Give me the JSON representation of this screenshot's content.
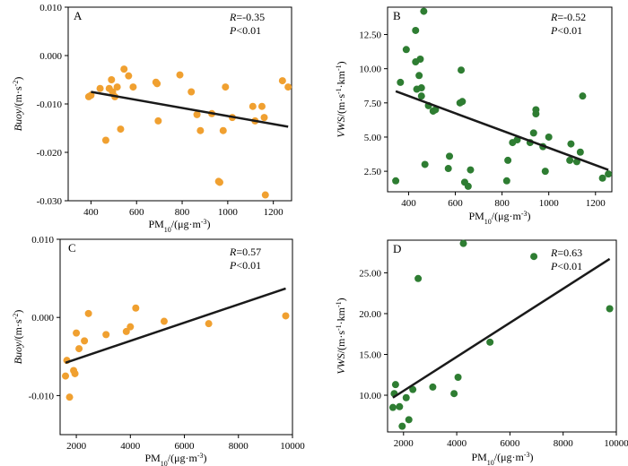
{
  "chart_data": [
    {
      "panel": "A",
      "type": "scatter",
      "stat_r_label": "R",
      "stat_r_value": "=-0.35",
      "stat_p_label": "P",
      "stat_p_value": "<0.01",
      "xlim": [
        300,
        1280
      ],
      "ylim": [
        -0.03,
        0.01
      ],
      "xticks": [
        400,
        600,
        800,
        1000,
        1200
      ],
      "yticks": [
        0.01,
        0.0,
        -0.01,
        -0.02,
        -0.03
      ],
      "xtick_labels": [
        "400",
        "600",
        "800",
        "1000",
        "1200"
      ],
      "ytick_labels": [
        "0.010",
        "0.000",
        "-0.010",
        "-0.020",
        "-0.030"
      ],
      "color": "#f0a030",
      "points": [
        [
          390,
          -0.0085
        ],
        [
          400,
          -0.0082
        ],
        [
          440,
          -0.0068
        ],
        [
          465,
          -0.0175
        ],
        [
          480,
          -0.0068
        ],
        [
          490,
          -0.005
        ],
        [
          495,
          -0.0075
        ],
        [
          505,
          -0.0085
        ],
        [
          515,
          -0.0065
        ],
        [
          530,
          -0.0152
        ],
        [
          545,
          -0.0028
        ],
        [
          565,
          -0.0042
        ],
        [
          585,
          -0.0065
        ],
        [
          685,
          -0.0055
        ],
        [
          690,
          -0.0058
        ],
        [
          695,
          -0.0135
        ],
        [
          790,
          -0.004
        ],
        [
          840,
          -0.0075
        ],
        [
          865,
          -0.0122
        ],
        [
          880,
          -0.0155
        ],
        [
          930,
          -0.012
        ],
        [
          960,
          -0.026
        ],
        [
          965,
          -0.0262
        ],
        [
          980,
          -0.0155
        ],
        [
          990,
          -0.0065
        ],
        [
          1020,
          -0.0128
        ],
        [
          1110,
          -0.0105
        ],
        [
          1120,
          -0.0135
        ],
        [
          1150,
          -0.0105
        ],
        [
          1160,
          -0.0128
        ],
        [
          1165,
          -0.0288
        ],
        [
          1240,
          -0.0052
        ],
        [
          1265,
          -0.0065
        ]
      ],
      "fit": [
        [
          400,
          -0.0075
        ],
        [
          1265,
          -0.0147
        ]
      ]
    },
    {
      "panel": "B",
      "type": "scatter",
      "stat_r_label": "R",
      "stat_r_value": "=-0.52",
      "stat_p_label": "P",
      "stat_p_value": "<0.01",
      "xlim": [
        310,
        1270
      ],
      "ylim": [
        1,
        14.5
      ],
      "xticks": [
        400,
        600,
        800,
        1000,
        1200
      ],
      "yticks": [
        2.5,
        5.0,
        7.5,
        10.0,
        12.5
      ],
      "xtick_labels": [
        "400",
        "600",
        "800",
        "1000",
        "1200"
      ],
      "ytick_labels": [
        "2.50",
        "5.00",
        "7.50",
        "10.00",
        "12.50"
      ],
      "color": "#2e7d32",
      "points": [
        [
          345,
          1.8
        ],
        [
          365,
          9.0
        ],
        [
          390,
          11.4
        ],
        [
          430,
          12.8
        ],
        [
          430,
          10.5
        ],
        [
          435,
          8.5
        ],
        [
          445,
          9.5
        ],
        [
          450,
          10.7
        ],
        [
          455,
          8.6
        ],
        [
          455,
          8.0
        ],
        [
          465,
          14.2
        ],
        [
          470,
          3.0
        ],
        [
          485,
          7.3
        ],
        [
          505,
          6.9
        ],
        [
          515,
          7.0
        ],
        [
          570,
          2.7
        ],
        [
          575,
          3.6
        ],
        [
          620,
          7.5
        ],
        [
          625,
          9.9
        ],
        [
          630,
          7.6
        ],
        [
          640,
          1.7
        ],
        [
          655,
          1.4
        ],
        [
          665,
          2.6
        ],
        [
          820,
          1.8
        ],
        [
          825,
          3.3
        ],
        [
          845,
          4.6
        ],
        [
          865,
          4.8
        ],
        [
          920,
          4.6
        ],
        [
          935,
          5.3
        ],
        [
          945,
          7.0
        ],
        [
          945,
          6.7
        ],
        [
          975,
          4.3
        ],
        [
          985,
          2.5
        ],
        [
          1000,
          5.0
        ],
        [
          1090,
          3.3
        ],
        [
          1095,
          4.5
        ],
        [
          1120,
          3.2
        ],
        [
          1135,
          3.9
        ],
        [
          1145,
          8.0
        ],
        [
          1230,
          2.0
        ],
        [
          1255,
          2.3
        ]
      ],
      "fit": [
        [
          345,
          8.35
        ],
        [
          1255,
          2.6
        ]
      ]
    },
    {
      "panel": "C",
      "type": "scatter",
      "stat_r_label": "R",
      "stat_r_value": "=0.57",
      "stat_p_label": "P",
      "stat_p_value": "<0.01",
      "xlim": [
        1400,
        10000
      ],
      "ylim": [
        -0.015,
        0.01
      ],
      "xticks": [
        2000,
        4000,
        6000,
        8000,
        10000
      ],
      "yticks": [
        0.01,
        0.0,
        -0.01
      ],
      "xtick_labels": [
        "2000",
        "4000",
        "6000",
        "8000",
        "10000"
      ],
      "ytick_labels": [
        "0.010",
        "0.000",
        "-0.010"
      ],
      "color": "#f0a030",
      "points": [
        [
          1600,
          -0.0075
        ],
        [
          1650,
          -0.0055
        ],
        [
          1750,
          -0.0102
        ],
        [
          1900,
          -0.0068
        ],
        [
          1950,
          -0.0072
        ],
        [
          2000,
          -0.002
        ],
        [
          2100,
          -0.004
        ],
        [
          2300,
          -0.003
        ],
        [
          2450,
          0.0005
        ],
        [
          3100,
          -0.0022
        ],
        [
          3850,
          -0.0018
        ],
        [
          4000,
          -0.0012
        ],
        [
          4200,
          0.0012
        ],
        [
          5250,
          -0.0005
        ],
        [
          6900,
          -0.0008
        ],
        [
          9750,
          0.0002
        ]
      ],
      "fit": [
        [
          1600,
          -0.0058
        ],
        [
          9750,
          0.0037
        ]
      ]
    },
    {
      "panel": "D",
      "type": "scatter",
      "stat_r_label": "R",
      "stat_r_value": "=0.63",
      "stat_p_label": "P",
      "stat_p_value": "<0.01",
      "xlim": [
        1400,
        10000
      ],
      "ylim": [
        5.5,
        29
      ],
      "xticks": [
        2000,
        4000,
        6000,
        8000,
        10000
      ],
      "yticks": [
        10.0,
        15.0,
        20.0,
        25.0
      ],
      "xtick_labels": [
        "2000",
        "4000",
        "6000",
        "8000",
        "10000"
      ],
      "ytick_labels": [
        "10.00",
        "15.00",
        "20.00",
        "25.00"
      ],
      "color": "#2e7d32",
      "points": [
        [
          1600,
          8.5
        ],
        [
          1650,
          10.2
        ],
        [
          1700,
          11.3
        ],
        [
          1850,
          8.6
        ],
        [
          1950,
          6.2
        ],
        [
          2100,
          9.7
        ],
        [
          2200,
          7.0
        ],
        [
          2350,
          10.7
        ],
        [
          2550,
          24.3
        ],
        [
          3100,
          11.0
        ],
        [
          3900,
          10.2
        ],
        [
          4050,
          12.2
        ],
        [
          4250,
          28.6
        ],
        [
          5250,
          16.5
        ],
        [
          6900,
          27.0
        ],
        [
          9750,
          20.6
        ]
      ],
      "fit": [
        [
          1600,
          9.7
        ],
        [
          9750,
          26.7
        ]
      ]
    }
  ],
  "labels": {
    "x_prefix": "PM",
    "x_sub": "10",
    "x_unit": "/(μg·m",
    "x_unit_sup": "-3",
    "x_unit_end": ")",
    "buoy_name": "Buoy",
    "buoy_unit": "/(m·s",
    "buoy_unit_sup": "-2",
    "buoy_unit_end": ")",
    "vws_name": "VWS",
    "vws_unit": "/(m·s",
    "vws_unit_sup1": "-1",
    "vws_unit_mid": "·km",
    "vws_unit_sup2": "-1",
    "vws_unit_end": ")"
  }
}
